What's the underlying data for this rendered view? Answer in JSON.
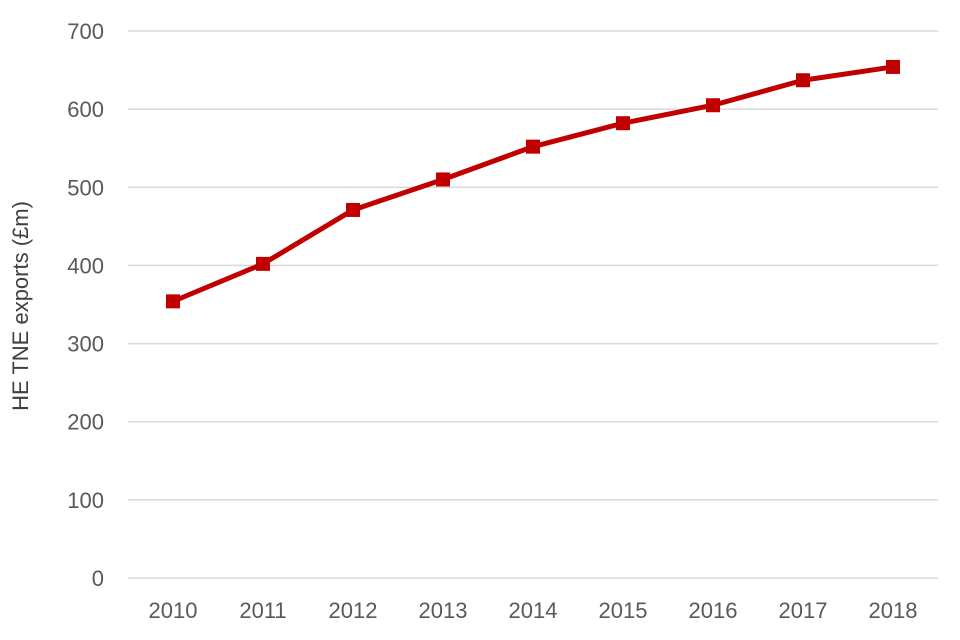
{
  "chart_data": {
    "type": "line",
    "title": "",
    "categories": [
      "2010",
      "2011",
      "2012",
      "2013",
      "2014",
      "2015",
      "2016",
      "2017",
      "2018"
    ],
    "values": [
      354,
      402,
      471,
      510,
      552,
      582,
      605,
      637,
      654
    ],
    "xlabel": "",
    "ylabel": "HE TNE exports (£m)",
    "ylim": [
      0,
      700
    ],
    "ytick_step": 100,
    "yticks": [
      0,
      100,
      200,
      300,
      400,
      500,
      600,
      700
    ],
    "line_color": "#C00000",
    "marker": "square",
    "marker_size": 14,
    "line_width": 5,
    "grid": "horizontal-only",
    "legend": "none",
    "style": {
      "gridline_color": "#D9D9D9",
      "tick_label_color": "#595959",
      "axis_title_color": "#404040",
      "background": "#FFFFFF"
    }
  }
}
